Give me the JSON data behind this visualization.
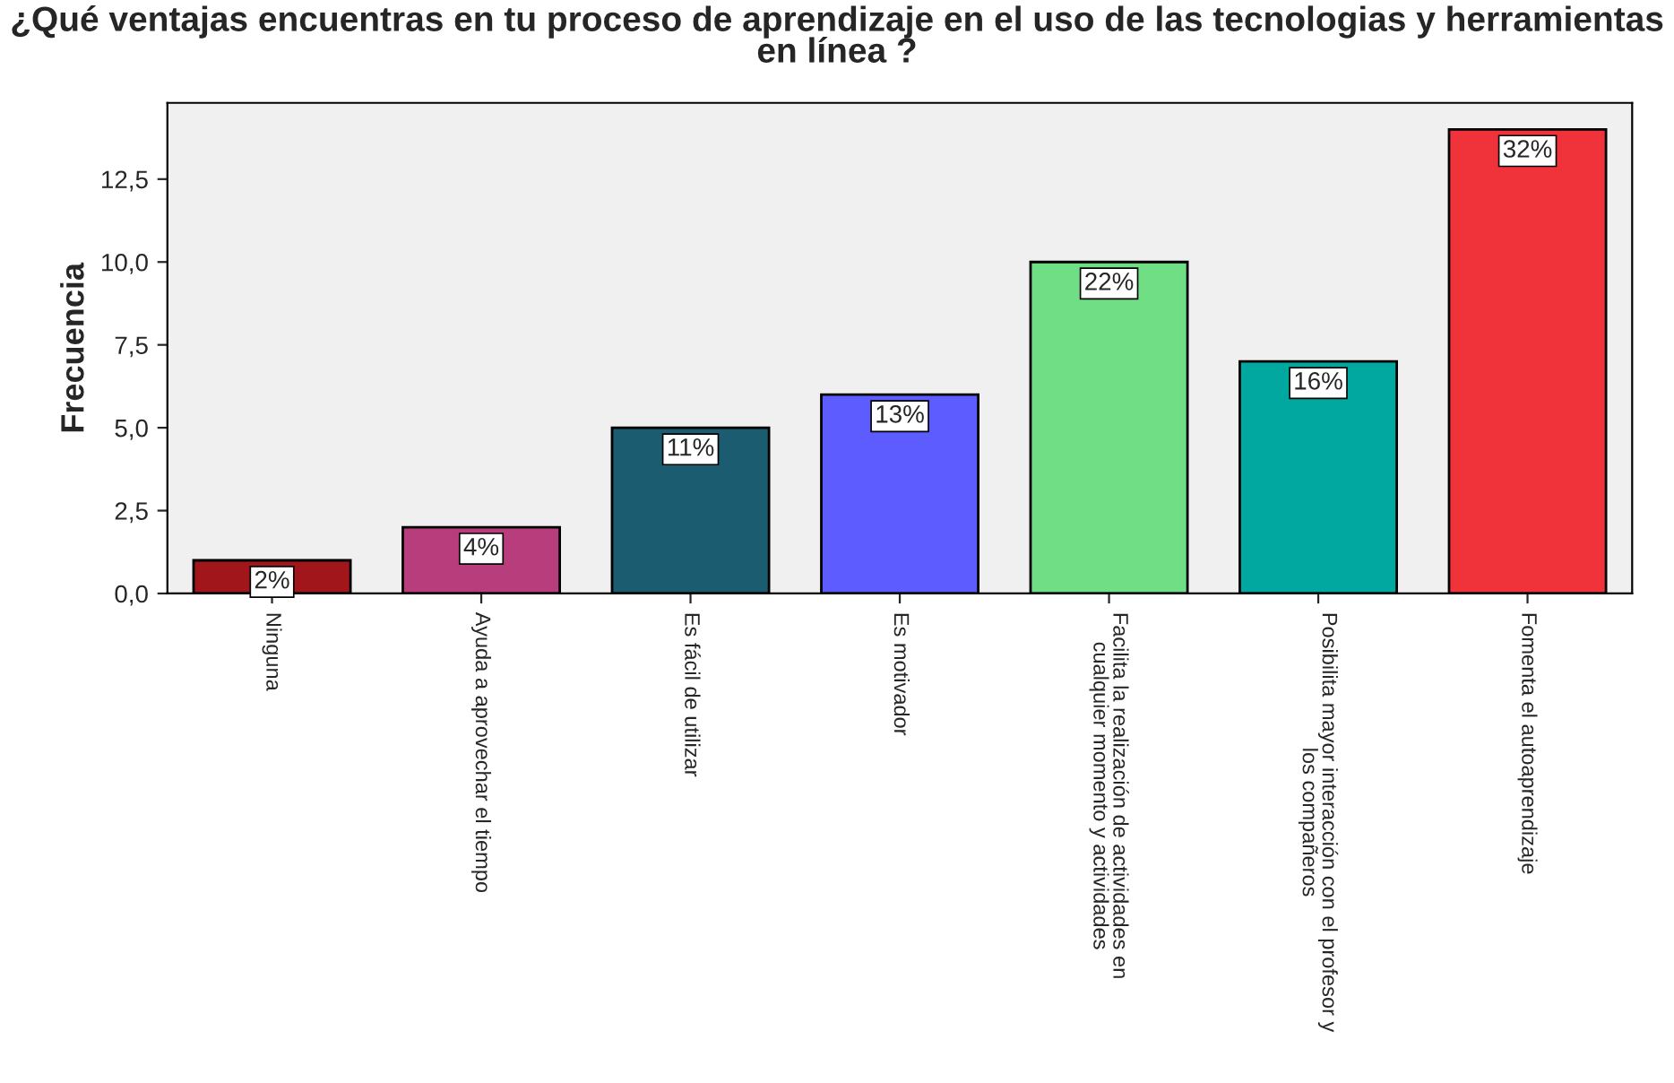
{
  "chart_data": {
    "type": "bar",
    "title": "¿Qué ventajas encuentras en tu proceso de aprendizaje en el uso de las tecnologias y herramientas en línea ?",
    "ylabel": "Frecuencia",
    "categories": [
      "Ninguna",
      "Ayuda a aprovechar el tiempo",
      "Es fácil de utilizar",
      "Es motivador",
      "Facilita la realización de actividades en\ncualquier momento y actividades",
      "Posibilita mayor interacción con el profesor y\nlos compañeros",
      "Fomenta el autoaprendizaje"
    ],
    "values": [
      1,
      2,
      5,
      6,
      10,
      7,
      14
    ],
    "colors": [
      "#a0161a",
      "#b83d7d",
      "#1b5c70",
      "#5c5cff",
      "#70de84",
      "#00a8a0",
      "#f0333a"
    ],
    "annotations": [
      {
        "text": "2%",
        "x": "Ninguna",
        "y": 1
      },
      {
        "text": "4%",
        "x": "Ayuda a aprovechar el tiempo",
        "y": 2
      },
      {
        "text": "11%",
        "x": "Es fácil de utilizar",
        "y": 5
      },
      {
        "text": "13%",
        "x": "Es motivador",
        "y": 6
      },
      {
        "text": "22%",
        "x": "Facilita la realización de actividades en\ncualquier momento y actividades",
        "y": 10
      },
      {
        "text": "16%",
        "x": "Posibilita mayor interacción con el profesor y\nlos compañeros",
        "y": 7
      },
      {
        "text": "32%",
        "x": "Fomenta el autoaprendizaje",
        "y": 14
      }
    ],
    "ylim": [
      0,
      14.8
    ],
    "yticks": [
      {
        "value": 0,
        "label": "0,0"
      },
      {
        "value": 2.5,
        "label": "2,5"
      },
      {
        "value": 5,
        "label": "5,0"
      },
      {
        "value": 7.5,
        "label": "7,5"
      },
      {
        "value": 10,
        "label": "10,0"
      },
      {
        "value": 12.5,
        "label": "12,5"
      }
    ],
    "grid": false
  }
}
